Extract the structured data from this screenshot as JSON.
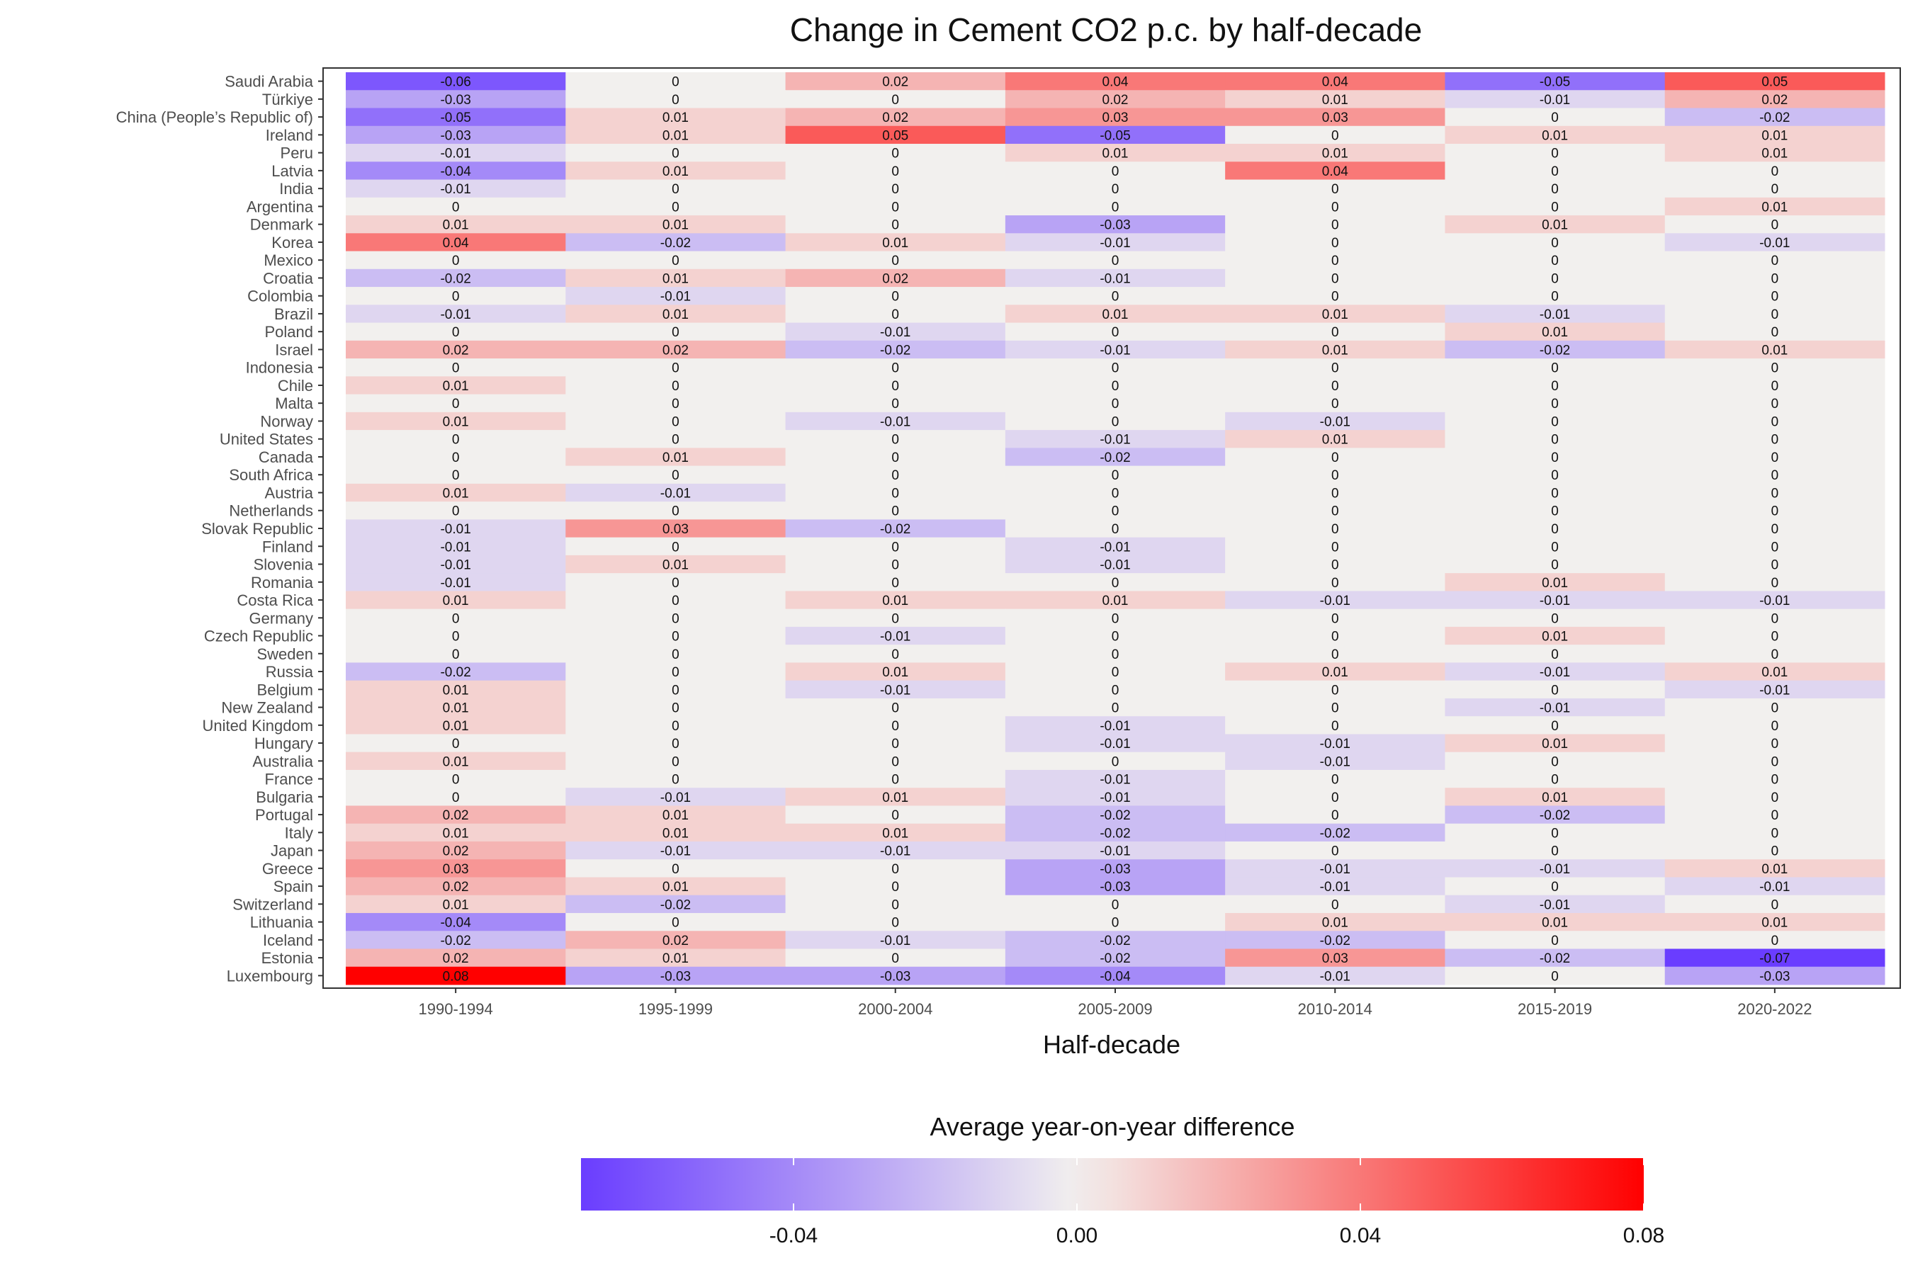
{
  "chart_data": {
    "type": "heatmap",
    "title": "Change in Cement CO2 p.c. by half-decade",
    "xlabel": "Half-decade",
    "ylabel": "",
    "x_categories": [
      "1990-1994",
      "1995-1999",
      "2000-2004",
      "2005-2009",
      "2010-2014",
      "2015-2019",
      "2020-2022"
    ],
    "y_categories": [
      "Saudi Arabia",
      "Türkiye",
      "China (People’s Republic of)",
      "Ireland",
      "Peru",
      "Latvia",
      "India",
      "Argentina",
      "Denmark",
      "Korea",
      "Mexico",
      "Croatia",
      "Colombia",
      "Brazil",
      "Poland",
      "Israel",
      "Indonesia",
      "Chile",
      "Malta",
      "Norway",
      "United States",
      "Canada",
      "South Africa",
      "Austria",
      "Netherlands",
      "Slovak Republic",
      "Finland",
      "Slovenia",
      "Romania",
      "Costa Rica",
      "Germany",
      "Czech Republic",
      "Sweden",
      "Russia",
      "Belgium",
      "New Zealand",
      "United Kingdom",
      "Hungary",
      "Australia",
      "France",
      "Bulgaria",
      "Portugal",
      "Italy",
      "Japan",
      "Greece",
      "Spain",
      "Switzerland",
      "Lithuania",
      "Iceland",
      "Estonia",
      "Luxembourg"
    ],
    "values": [
      [
        -0.06,
        0,
        0.02,
        0.04,
        0.04,
        -0.05,
        0.05
      ],
      [
        -0.03,
        0,
        0,
        0.02,
        0.01,
        -0.01,
        0.02
      ],
      [
        -0.05,
        0.01,
        0.02,
        0.03,
        0.03,
        0,
        -0.02
      ],
      [
        -0.03,
        0.01,
        0.05,
        -0.05,
        0,
        0.01,
        0.01
      ],
      [
        -0.01,
        0,
        0,
        0.01,
        0.01,
        0,
        0.01
      ],
      [
        -0.04,
        0.01,
        0,
        0,
        0.04,
        0,
        0
      ],
      [
        -0.01,
        0,
        0,
        0,
        0,
        0,
        0
      ],
      [
        0,
        0,
        0,
        0,
        0,
        0,
        0.01
      ],
      [
        0.01,
        0.01,
        0,
        -0.03,
        0,
        0.01,
        0
      ],
      [
        0.04,
        -0.02,
        0.01,
        -0.01,
        0,
        0,
        -0.01
      ],
      [
        0,
        0,
        0,
        0,
        0,
        0,
        0
      ],
      [
        -0.02,
        0.01,
        0.02,
        -0.01,
        0,
        0,
        0
      ],
      [
        0,
        -0.01,
        0,
        0,
        0,
        0,
        0
      ],
      [
        -0.01,
        0.01,
        0,
        0.01,
        0.01,
        -0.01,
        0
      ],
      [
        0,
        0,
        -0.01,
        0,
        0,
        0.01,
        0
      ],
      [
        0.02,
        0.02,
        -0.02,
        -0.01,
        0.01,
        -0.02,
        0.01
      ],
      [
        0,
        0,
        0,
        0,
        0,
        0,
        0
      ],
      [
        0.01,
        0,
        0,
        0,
        0,
        0,
        0
      ],
      [
        0,
        0,
        0,
        0,
        0,
        0,
        0
      ],
      [
        0.01,
        0,
        -0.01,
        0,
        -0.01,
        0,
        0
      ],
      [
        0,
        0,
        0,
        -0.01,
        0.01,
        0,
        0
      ],
      [
        0,
        0.01,
        0,
        -0.02,
        0,
        0,
        0
      ],
      [
        0,
        0,
        0,
        0,
        0,
        0,
        0
      ],
      [
        0.01,
        -0.01,
        0,
        0,
        0,
        0,
        0
      ],
      [
        0,
        0,
        0,
        0,
        0,
        0,
        0
      ],
      [
        -0.01,
        0.03,
        -0.02,
        0,
        0,
        0,
        0
      ],
      [
        -0.01,
        0,
        0,
        -0.01,
        0,
        0,
        0
      ],
      [
        -0.01,
        0.01,
        0,
        -0.01,
        0,
        0,
        0
      ],
      [
        -0.01,
        0,
        0,
        0,
        0,
        0.01,
        0
      ],
      [
        0.01,
        0,
        0.01,
        0.01,
        -0.01,
        -0.01,
        -0.01
      ],
      [
        0,
        0,
        0,
        0,
        0,
        0,
        0
      ],
      [
        0,
        0,
        -0.01,
        0,
        0,
        0.01,
        0
      ],
      [
        0,
        0,
        0,
        0,
        0,
        0,
        0
      ],
      [
        -0.02,
        0,
        0.01,
        0,
        0.01,
        -0.01,
        0.01
      ],
      [
        0.01,
        0,
        -0.01,
        0,
        0,
        0,
        -0.01
      ],
      [
        0.01,
        0,
        0,
        0,
        0,
        -0.01,
        0
      ],
      [
        0.01,
        0,
        0,
        -0.01,
        0,
        0,
        0
      ],
      [
        0,
        0,
        0,
        -0.01,
        -0.01,
        0.01,
        0
      ],
      [
        0.01,
        0,
        0,
        0,
        -0.01,
        0,
        0
      ],
      [
        0,
        0,
        0,
        -0.01,
        0,
        0,
        0
      ],
      [
        0,
        -0.01,
        0.01,
        -0.01,
        0,
        0.01,
        0
      ],
      [
        0.02,
        0.01,
        0,
        -0.02,
        0,
        -0.02,
        0
      ],
      [
        0.01,
        0.01,
        0.01,
        -0.02,
        -0.02,
        0,
        0
      ],
      [
        0.02,
        -0.01,
        -0.01,
        -0.01,
        0,
        0,
        0
      ],
      [
        0.03,
        0,
        0,
        -0.03,
        -0.01,
        -0.01,
        0.01
      ],
      [
        0.02,
        0.01,
        0,
        -0.03,
        -0.01,
        0,
        -0.01
      ],
      [
        0.01,
        -0.02,
        0,
        0,
        0,
        -0.01,
        0
      ],
      [
        -0.04,
        0,
        0,
        0,
        0.01,
        0.01,
        0.01
      ],
      [
        -0.02,
        0.02,
        -0.01,
        -0.02,
        -0.02,
        0,
        0
      ],
      [
        0.02,
        0.01,
        0,
        -0.02,
        0.03,
        -0.02,
        -0.07
      ],
      [
        0.08,
        -0.03,
        -0.03,
        -0.04,
        -0.01,
        0,
        -0.03
      ]
    ],
    "legend": {
      "title": "Average year-on-year difference",
      "position": "bottom",
      "ticks": [
        -0.04,
        0.0,
        0.04,
        0.08
      ],
      "tick_labels": [
        "-0.04",
        "0.00",
        "0.04",
        "0.08"
      ],
      "range": [
        -0.07,
        0.08
      ]
    },
    "colors": {
      "low": "#6a3dff",
      "mid": "#f2f0ee",
      "high": "#ff0000"
    },
    "grid": false
  }
}
